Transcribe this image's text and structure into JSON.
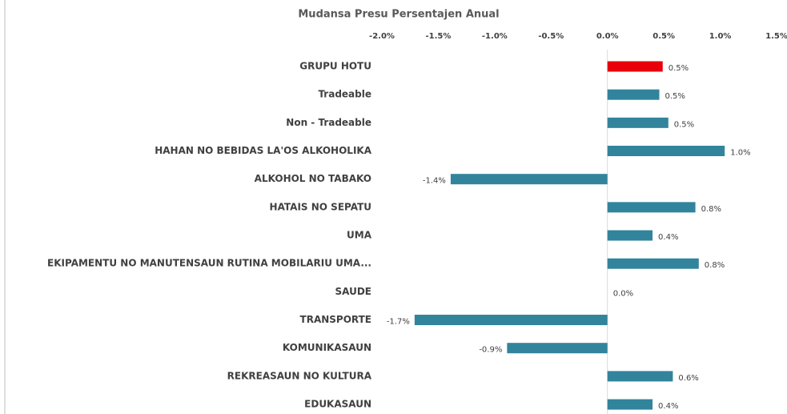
{
  "chart_data": {
    "type": "hbar",
    "title": "Mudansa Presu Persentajen Anual",
    "categories": [
      "GRUPU HOTU",
      "Tradeable",
      "Non - Tradeable",
      "HAHAN NO BEBIDAS LA'OS ALKOHOLIKA",
      "ALKOHOL NO TABAKO",
      "HATAIS NO SEPATU",
      "UMA",
      "EKIPAMENTU NO MANUTENSAUN RUTINA MOBILARIU UMA...",
      "SAUDE",
      "TRANSPORTE",
      "KOMUNIKASAUN",
      "REKREASAUN NO KULTURA",
      "EDUKASAUN"
    ],
    "values": [
      0.49,
      0.46,
      0.54,
      1.04,
      -1.39,
      0.78,
      0.4,
      0.81,
      0.0,
      -1.71,
      -0.89,
      0.58,
      0.4
    ],
    "value_labels": [
      "0.5%",
      "0.5%",
      "0.5%",
      "1.0%",
      "-1.4%",
      "0.8%",
      "0.4%",
      "0.8%",
      "0.0%",
      "-1.7%",
      "-0.9%",
      "0.6%",
      "0.4%"
    ],
    "colors": [
      "#e8000b",
      "#31849b",
      "#31849b",
      "#31849b",
      "#31849b",
      "#31849b",
      "#31849b",
      "#31849b",
      "#31849b",
      "#31849b",
      "#31849b",
      "#31849b",
      "#31849b"
    ],
    "xlim": [
      -2.0,
      1.5
    ],
    "xticks": [
      {
        "value": -2.0,
        "label": "-2.0%"
      },
      {
        "value": -1.5,
        "label": "-1.5%"
      },
      {
        "value": -1.0,
        "label": "-1.0%"
      },
      {
        "value": -0.5,
        "label": "-0.5%"
      },
      {
        "value": 0.0,
        "label": "0.0%"
      },
      {
        "value": 0.5,
        "label": "0.5%"
      },
      {
        "value": 1.0,
        "label": "1.0%"
      },
      {
        "value": 1.5,
        "label": "1.5%"
      }
    ]
  }
}
